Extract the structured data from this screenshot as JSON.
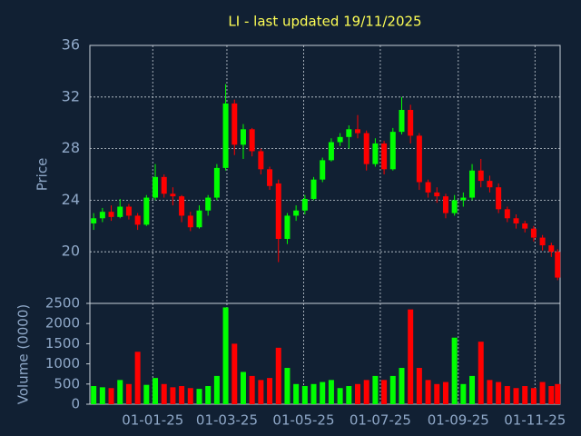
{
  "chart_data": {
    "type": "candlestick",
    "title": "LI - last updated 19/11/2025",
    "y_label": "Price",
    "volume_label": "Volume (0000)",
    "x": [
      "2024-11-15",
      "2024-11-22",
      "2024-11-29",
      "2024-12-06",
      "2024-12-13",
      "2024-12-20",
      "2024-12-27",
      "2025-01-03",
      "2025-01-10",
      "2025-01-17",
      "2025-01-24",
      "2025-01-31",
      "2025-02-07",
      "2025-02-14",
      "2025-02-21",
      "2025-02-28",
      "2025-03-07",
      "2025-03-14",
      "2025-03-21",
      "2025-03-28",
      "2025-04-04",
      "2025-04-11",
      "2025-04-18",
      "2025-04-25",
      "2025-05-02",
      "2025-05-09",
      "2025-05-16",
      "2025-05-23",
      "2025-05-30",
      "2025-06-06",
      "2025-06-13",
      "2025-06-20",
      "2025-06-27",
      "2025-07-04",
      "2025-07-11",
      "2025-07-18",
      "2025-07-25",
      "2025-08-01",
      "2025-08-08",
      "2025-08-15",
      "2025-08-22",
      "2025-08-29",
      "2025-09-05",
      "2025-09-12",
      "2025-09-19",
      "2025-09-26",
      "2025-10-03",
      "2025-10-10",
      "2025-10-17",
      "2025-10-24",
      "2025-10-31",
      "2025-11-07",
      "2025-11-14",
      "2025-11-19"
    ],
    "open": [
      22.2,
      22.6,
      23.1,
      22.7,
      23.5,
      22.8,
      22.1,
      24.2,
      25.8,
      24.5,
      24.3,
      22.8,
      21.9,
      23.2,
      24.2,
      26.5,
      31.5,
      28.3,
      29.5,
      27.8,
      26.4,
      25.3,
      21.0,
      22.8,
      23.2,
      24.1,
      25.6,
      27.1,
      28.5,
      28.9,
      29.5,
      29.2,
      26.8,
      28.4,
      26.4,
      29.3,
      31.0,
      29.0,
      25.4,
      24.6,
      24.3,
      23.0,
      24.0,
      24.2,
      26.3,
      25.5,
      25.0,
      23.3,
      22.6,
      22.2,
      21.8,
      21.1,
      20.5,
      20.0
    ],
    "high": [
      23.0,
      23.4,
      23.6,
      24.1,
      23.7,
      23.0,
      24.4,
      26.8,
      26.0,
      25.0,
      24.4,
      23.1,
      23.6,
      24.4,
      26.8,
      33.0,
      31.8,
      29.9,
      29.6,
      28.0,
      26.6,
      25.6,
      23.0,
      23.6,
      24.4,
      25.8,
      27.3,
      28.8,
      29.2,
      29.8,
      30.6,
      29.4,
      28.8,
      28.6,
      29.6,
      32.0,
      31.4,
      29.2,
      25.6,
      25.0,
      24.5,
      24.4,
      24.6,
      26.8,
      27.2,
      25.9,
      25.3,
      23.5,
      22.9,
      22.4,
      22.0,
      21.3,
      20.7,
      20.2
    ],
    "low": [
      21.7,
      22.3,
      22.4,
      22.6,
      22.5,
      21.7,
      22.0,
      24.0,
      24.2,
      23.6,
      22.3,
      21.6,
      21.8,
      22.8,
      24.0,
      26.3,
      27.5,
      27.2,
      27.4,
      26.0,
      24.8,
      19.2,
      20.6,
      22.4,
      22.9,
      24.0,
      25.4,
      27.0,
      28.2,
      28.0,
      28.8,
      26.3,
      26.6,
      26.0,
      26.3,
      29.1,
      28.4,
      24.8,
      24.2,
      23.8,
      22.6,
      22.8,
      23.5,
      24.0,
      25.0,
      24.6,
      23.0,
      22.3,
      21.8,
      21.5,
      20.8,
      20.1,
      19.6,
      17.8
    ],
    "close": [
      22.6,
      23.1,
      22.7,
      23.5,
      22.8,
      22.1,
      24.2,
      25.8,
      24.5,
      24.3,
      22.8,
      21.9,
      23.2,
      24.2,
      26.5,
      31.5,
      28.3,
      29.5,
      27.8,
      26.4,
      25.1,
      21.0,
      22.8,
      23.2,
      24.1,
      25.6,
      27.1,
      28.5,
      28.9,
      29.5,
      29.2,
      26.8,
      28.4,
      26.4,
      29.3,
      31.0,
      29.0,
      25.4,
      24.6,
      24.3,
      23.0,
      24.0,
      24.2,
      26.3,
      25.5,
      25.0,
      23.3,
      22.6,
      22.2,
      21.8,
      21.1,
      20.5,
      20.0,
      18.0
    ],
    "volume": [
      450,
      420,
      400,
      600,
      500,
      1300,
      480,
      650,
      500,
      420,
      450,
      400,
      380,
      450,
      700,
      2400,
      1500,
      800,
      700,
      600,
      650,
      1400,
      900,
      500,
      450,
      500,
      550,
      600,
      400,
      450,
      500,
      600,
      700,
      600,
      700,
      900,
      2350,
      900,
      600,
      500,
      550,
      1650,
      500,
      700,
      1550,
      600,
      550,
      450,
      400,
      450,
      400,
      550,
      450,
      500
    ],
    "up_color": "#00ff00",
    "down_color": "#ff0000",
    "xlim": [
      "2024-11-12",
      "2025-11-21"
    ],
    "xticks": [
      {
        "value": "2025-01-01",
        "label": "01-01-25"
      },
      {
        "value": "2025-03-01",
        "label": "01-03-25"
      },
      {
        "value": "2025-05-01",
        "label": "01-05-25"
      },
      {
        "value": "2025-07-01",
        "label": "01-07-25"
      },
      {
        "value": "2025-09-01",
        "label": "01-09-25"
      },
      {
        "value": "2025-11-01",
        "label": "01-11-25"
      }
    ],
    "ylim": [
      16,
      36
    ],
    "yticks": [
      20,
      24,
      28,
      32,
      36
    ],
    "volume_ylim": [
      0,
      2500
    ],
    "volume_yticks": [
      0,
      500,
      1000,
      1500,
      2000,
      2500
    ],
    "grid": true
  }
}
